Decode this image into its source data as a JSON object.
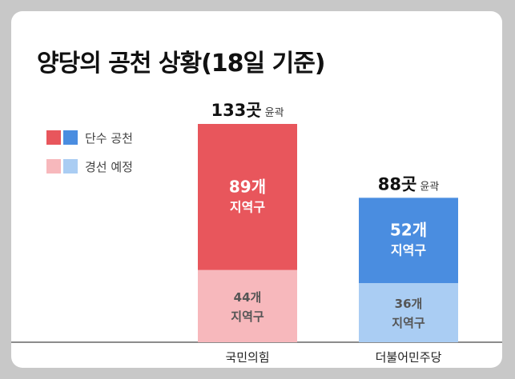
{
  "chart_data": {
    "type": "bar",
    "stacked": true,
    "title": "양당의 공천 상황(18일 기준)",
    "categories": [
      "국민의힘",
      "더불어민주당"
    ],
    "series": [
      {
        "name": "단수 공천",
        "values": [
          89,
          52
        ],
        "colors": [
          "#e8565c",
          "#4a8de0"
        ]
      },
      {
        "name": "경선 예정",
        "values": [
          44,
          36
        ],
        "colors": [
          "#f7b8bc",
          "#aacdf3"
        ]
      }
    ],
    "totals": [
      133,
      88
    ],
    "total_unit": "곳",
    "total_suffix": "윤곽",
    "segment_unit": "개",
    "segment_sublabel": "지역구",
    "legend": {
      "position": "left",
      "items": [
        {
          "label": "단수 공천",
          "colors": [
            "#e8565c",
            "#4a8de0"
          ]
        },
        {
          "label": "경선 예정",
          "colors": [
            "#f7b8bc",
            "#aacdf3"
          ]
        }
      ]
    },
    "ylim": [
      0,
      133
    ],
    "grid": false
  }
}
